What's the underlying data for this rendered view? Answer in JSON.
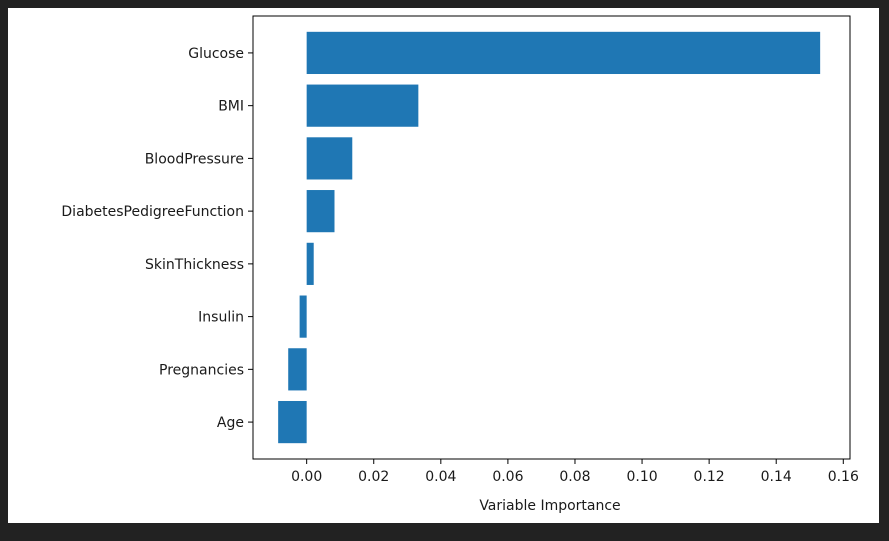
{
  "chart_data": {
    "type": "bar",
    "orientation": "horizontal",
    "title": "",
    "xlabel": "Variable Importance",
    "ylabel": "",
    "categories": [
      "Glucose",
      "BMI",
      "BloodPressure",
      "DiabetesPedigreeFunction",
      "SkinThickness",
      "Insulin",
      "Pregnancies",
      "Age"
    ],
    "values": [
      0.1531,
      0.0333,
      0.0136,
      0.0083,
      0.0021,
      -0.0021,
      -0.0055,
      -0.0085
    ],
    "xlim": [
      -0.016,
      0.162
    ],
    "xticks": [
      "0.00",
      "0.02",
      "0.04",
      "0.06",
      "0.08",
      "0.10",
      "0.12",
      "0.14",
      "0.16"
    ],
    "grid": false,
    "bar_color": "#1f77b4"
  }
}
